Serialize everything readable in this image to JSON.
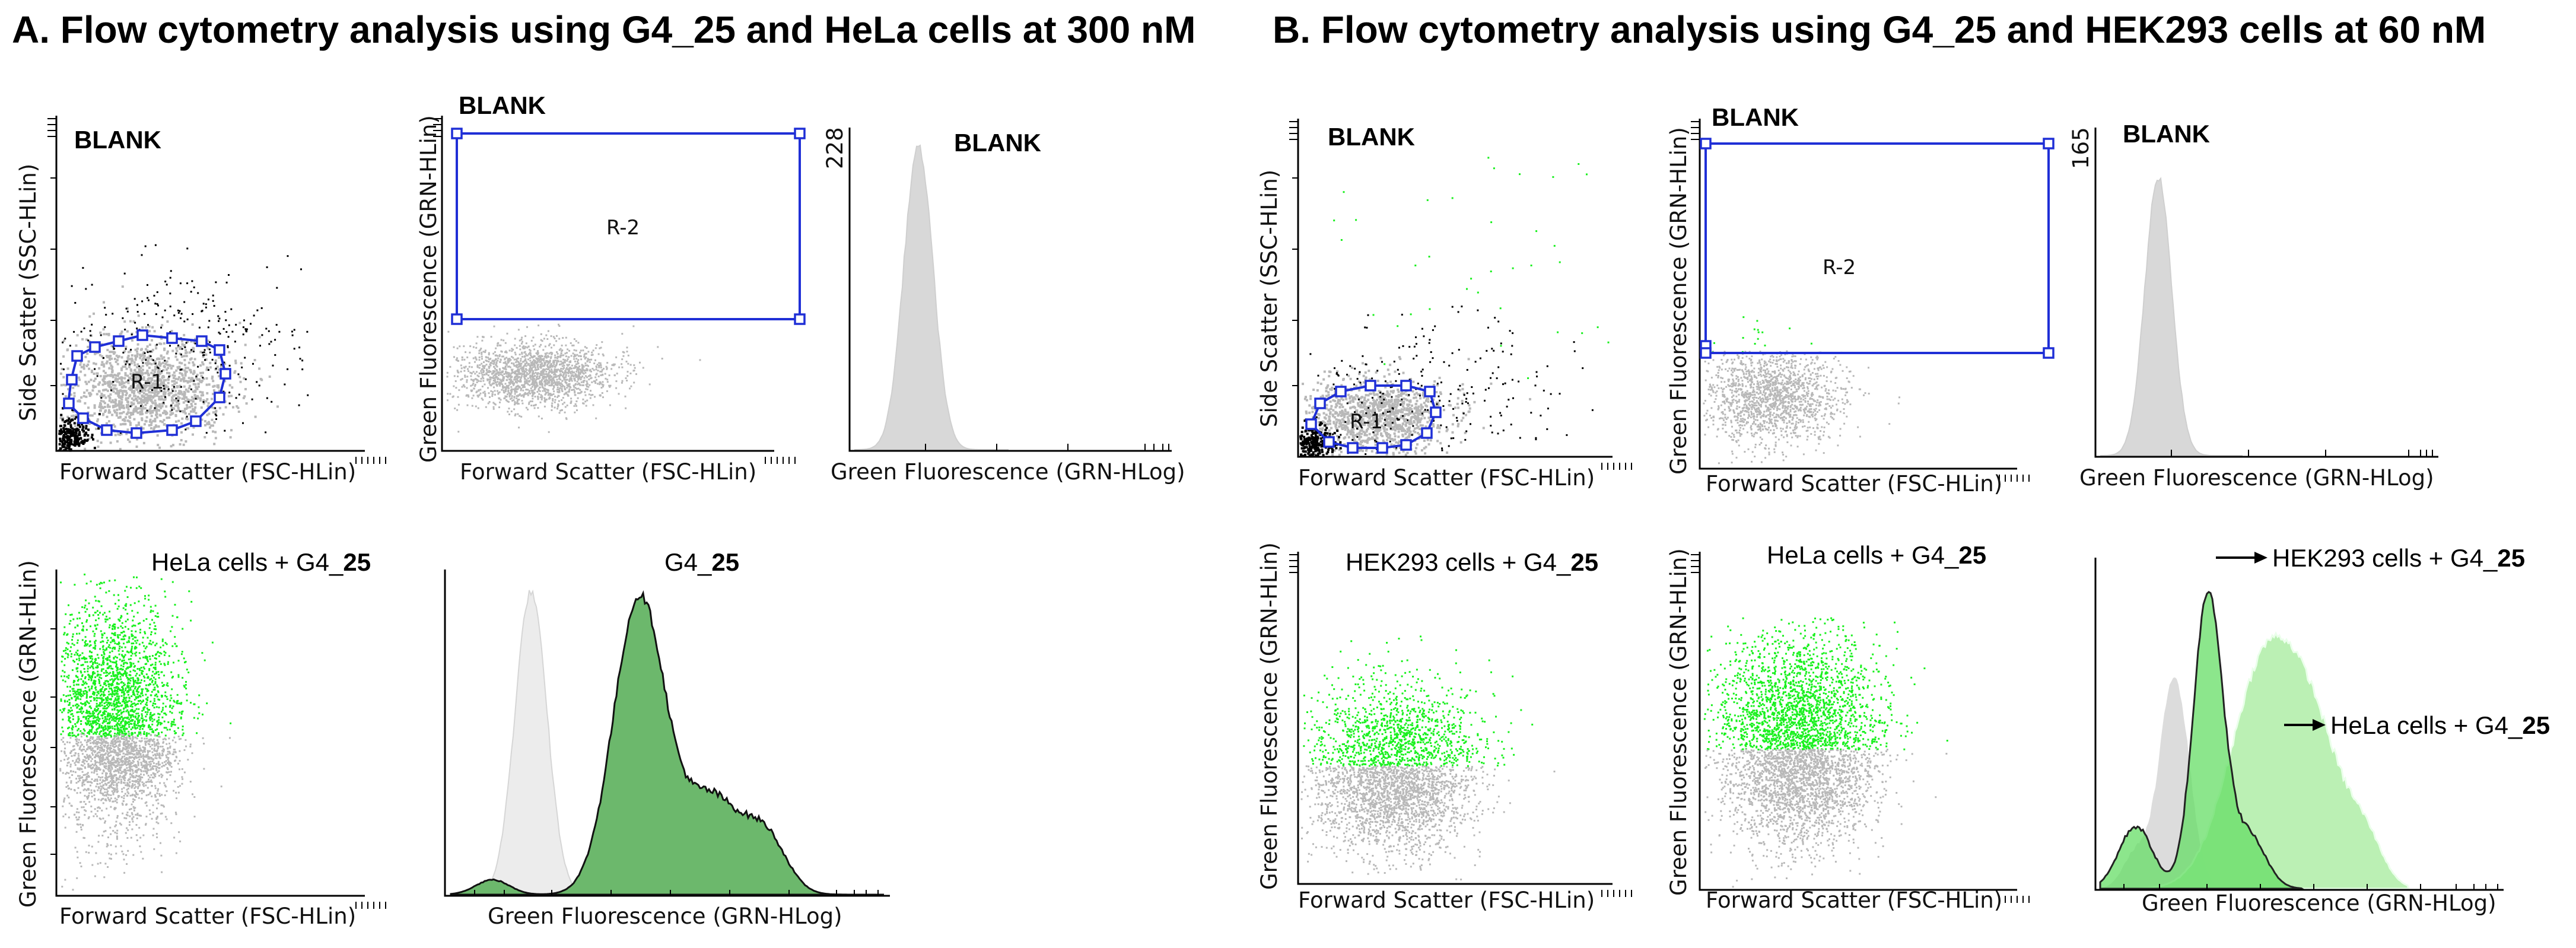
{
  "panelA": {
    "title": "A. Flow cytometry analysis using G4_25 and HeLa cells at 300 nM",
    "blank": "BLANK",
    "x_fsc": "Forward Scatter (FSC-HLin)",
    "y_ssc": "Side Scatter (SSC-HLin)",
    "y_grn": "Green Fluorescence (GRN-HLin)",
    "x_grn_log": "Green Fluorescence (GRN-HLog)",
    "region1": "R-1",
    "region2": "R-2",
    "hist_max": "228",
    "cells_prefix": "HeLa cells + G4_",
    "cells_suffix": "25",
    "compound_prefix": "G4_",
    "compound_suffix": "25"
  },
  "panelB": {
    "title": "B. Flow cytometry analysis using G4_25 and HEK293 cells at 60 nM",
    "blank": "BLANK",
    "x_fsc": "Forward Scatter (FSC-HLin)",
    "y_ssc": "Side Scatter (SSC-HLin)",
    "y_grn": "Green Fluorescence (GRN-HLin)",
    "x_grn_log": "Green Fluorescence (GRN-HLog)",
    "region1": "R-1",
    "region2": "R-2",
    "hist_max": "165",
    "hek_prefix": "HEK293 cells + G4_",
    "hek_suffix": "25",
    "hela_prefix": "HeLa cells + G4_",
    "hela_suffix": "25"
  },
  "colors": {
    "green_events": "#19f01e",
    "grey_events": "#b8b8b8",
    "gate": "#1f2fd6",
    "hist_dark_green": "#6cb86c",
    "hist_light_green": "#b8f0b0",
    "hist_mid_green": "#66dd66",
    "hist_grey": "#d8d8d8"
  }
}
